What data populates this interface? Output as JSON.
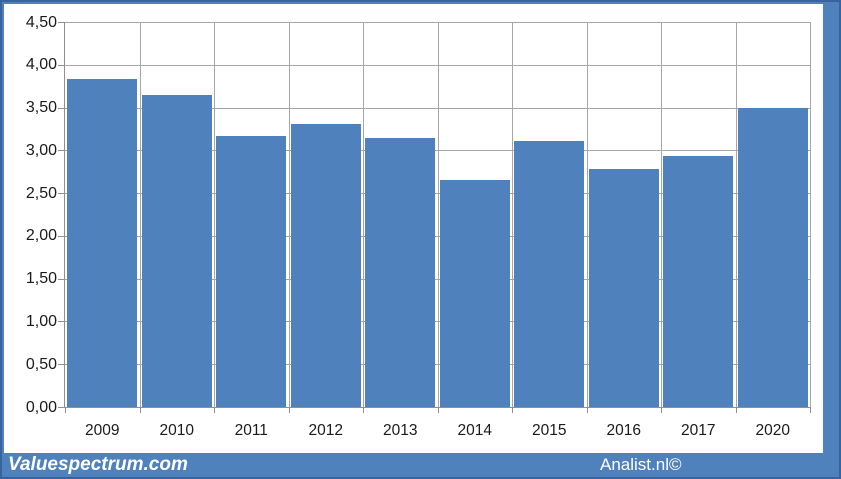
{
  "chart_data": {
    "type": "bar",
    "title": "",
    "xlabel": "",
    "ylabel": "",
    "categories": [
      "2009",
      "2010",
      "2011",
      "2012",
      "2013",
      "2014",
      "2015",
      "2016",
      "2017",
      "2020"
    ],
    "values": [
      3.83,
      3.65,
      3.17,
      3.31,
      3.15,
      2.65,
      3.11,
      2.78,
      2.93,
      3.5
    ],
    "ylim": [
      0,
      4.5
    ],
    "y_tick_step": 0.5,
    "y_tick_labels": [
      "0,00",
      "0,50",
      "1,00",
      "1,50",
      "2,00",
      "2,50",
      "3,00",
      "3,50",
      "4,00",
      "4,50"
    ],
    "grid": "both",
    "legend": "none",
    "bar_color": "#4F81BD"
  },
  "footer": {
    "left_text": "Valuespectrum.com",
    "right_text": "Analist.nl©"
  },
  "colors": {
    "frame": "#4F81BD",
    "frame_edge": "#39639E",
    "plot_bg": "#FFFFFF",
    "gridline": "#A6A6A6",
    "axis": "#8F8F8F",
    "bar": "#4F81BD",
    "label": "#1A1A1A",
    "footer_text": "#FFFFFF"
  }
}
